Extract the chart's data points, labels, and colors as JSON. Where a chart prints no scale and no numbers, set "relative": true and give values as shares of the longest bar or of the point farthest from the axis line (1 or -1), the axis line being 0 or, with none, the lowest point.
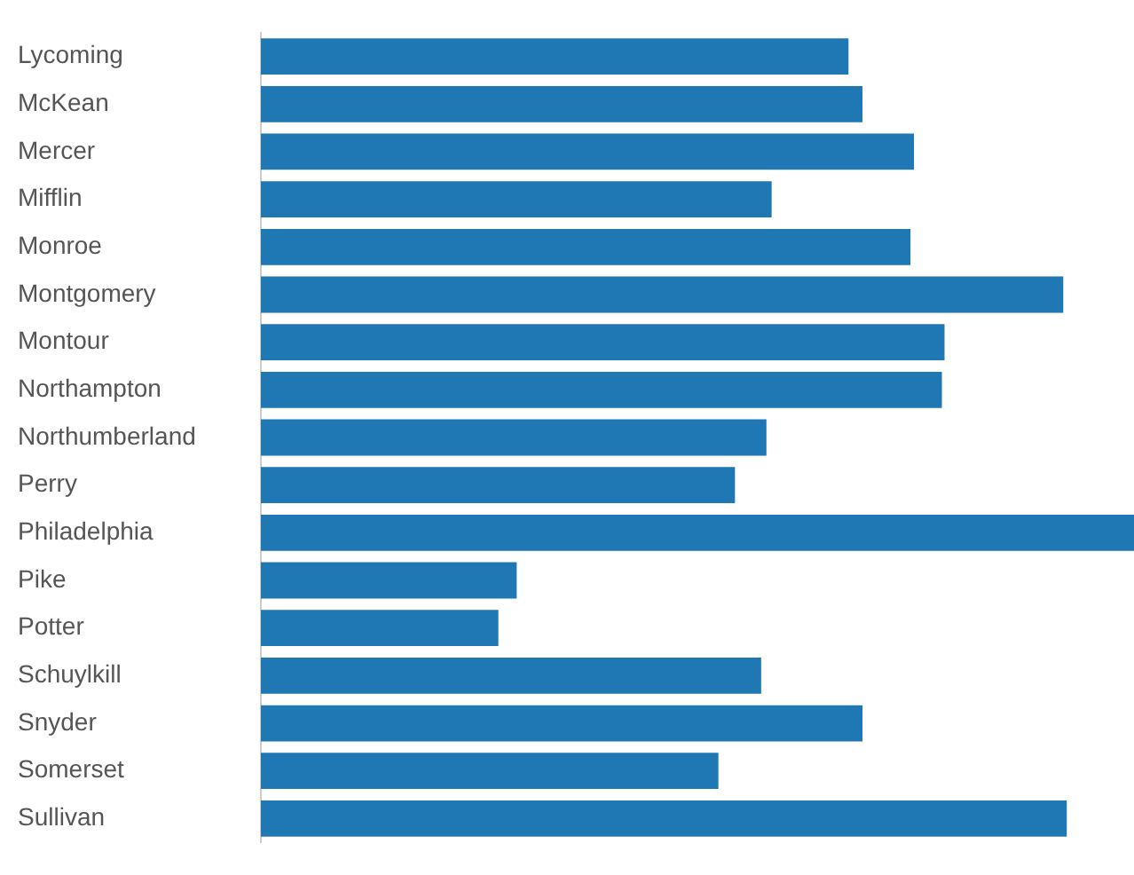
{
  "chart_data": {
    "type": "bar",
    "orientation": "horizontal",
    "relative": true,
    "legend": false,
    "color": "#1f77b4",
    "categories": [
      "Lycoming",
      "McKean",
      "Mercer",
      "Mifflin",
      "Monroe",
      "Montgomery",
      "Montour",
      "Northampton",
      "Northumberland",
      "Perry",
      "Philadelphia",
      "Pike",
      "Potter",
      "Schuylkill",
      "Snyder",
      "Somerset",
      "Sullivan"
    ],
    "values": [
      0.673,
      0.689,
      0.748,
      0.585,
      0.744,
      0.919,
      0.783,
      0.78,
      0.579,
      0.543,
      1,
      0.293,
      0.272,
      0.573,
      0.689,
      0.524,
      0.923
    ]
  }
}
